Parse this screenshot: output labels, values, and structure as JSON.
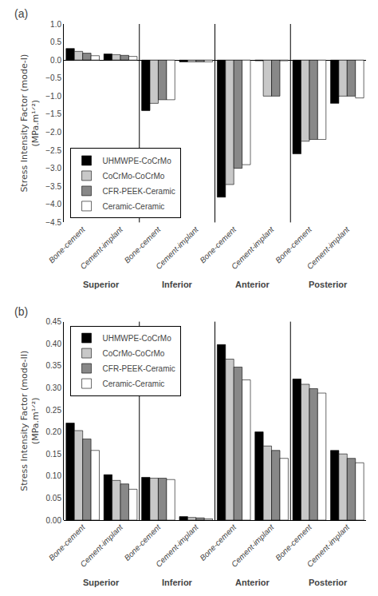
{
  "chart_data": [
    {
      "type": "bar",
      "title": "(a)",
      "y_label": "Stress Intensity Factor (mode-I)\n(MPa.m¹ᐟ²)",
      "groups": [
        "Superior",
        "Inferior",
        "Anterior",
        "Posterior"
      ],
      "categories": [
        "Bone-cement",
        "Cement-implant",
        "Bone-cement",
        "Cement-implant",
        "Bone-cement",
        "Cement-implant",
        "Bone-cement",
        "Cement-implant"
      ],
      "series": [
        {
          "name": "UHMWPE-CoCrMo",
          "color": "#000000",
          "values": [
            0.32,
            0.17,
            -1.4,
            -0.05,
            -3.8,
            -0.02,
            -2.6,
            -1.2
          ]
        },
        {
          "name": "CoCrMo-CoCrMo",
          "color": "#c8c8c8",
          "values": [
            0.24,
            0.15,
            -1.2,
            -0.05,
            -3.45,
            -1.0,
            -2.25,
            -1.0
          ]
        },
        {
          "name": "CFR-PEEK-Ceramic",
          "color": "#888888",
          "values": [
            0.19,
            0.13,
            -1.1,
            -0.05,
            -3.0,
            -1.0,
            -2.2,
            -1.0
          ]
        },
        {
          "name": "Ceramic-Ceramic",
          "color": "#ffffff",
          "values": [
            0.12,
            0.1,
            -1.1,
            -0.05,
            -2.9,
            -0.02,
            -2.2,
            -1.05
          ]
        }
      ],
      "ylim": [
        -4.5,
        1.0
      ],
      "yticks": [
        {
          "value": 1.0,
          "label": "1.0"
        },
        {
          "value": 0.5,
          "label": "0.5"
        },
        {
          "value": 0.0,
          "label": "0.0"
        },
        {
          "value": -0.5,
          "label": "−0.5"
        },
        {
          "value": -1.0,
          "label": "−1.0"
        },
        {
          "value": -1.5,
          "label": "−1.5"
        },
        {
          "value": -2.0,
          "label": "−2.0"
        },
        {
          "value": -2.5,
          "label": "−2.5"
        },
        {
          "value": -3.0,
          "label": "−3.0"
        },
        {
          "value": -3.5,
          "label": "−3.5"
        },
        {
          "value": -4.0,
          "label": "−4.0"
        },
        {
          "value": -4.5,
          "label": "−4.5"
        }
      ],
      "grid": false,
      "legend": "lower left"
    },
    {
      "type": "bar",
      "title": "(b)",
      "y_label": "Stress Intensity Factor (mode-II)\n(MPa.m¹ᐟ²)",
      "groups": [
        "Superior",
        "Inferior",
        "Anterior",
        "Posterior"
      ],
      "categories": [
        "Bone-cement",
        "Cement-implant",
        "Bone-cement",
        "Cement-implant",
        "Bone-cement",
        "Cement-implant",
        "Bone-cement",
        "Cement-implant"
      ],
      "series": [
        {
          "name": "UHMWPE-CoCrMo",
          "color": "#000000",
          "values": [
            0.22,
            0.103,
            0.097,
            0.008,
            0.398,
            0.2,
            0.32,
            0.158
          ]
        },
        {
          "name": "CoCrMo-CoCrMo",
          "color": "#c8c8c8",
          "values": [
            0.203,
            0.09,
            0.095,
            0.006,
            0.365,
            0.168,
            0.308,
            0.15
          ]
        },
        {
          "name": "CFR-PEEK-Ceramic",
          "color": "#888888",
          "values": [
            0.184,
            0.082,
            0.095,
            0.005,
            0.347,
            0.158,
            0.298,
            0.14
          ]
        },
        {
          "name": "Ceramic-Ceramic",
          "color": "#ffffff",
          "values": [
            0.158,
            0.07,
            0.092,
            0.003,
            0.318,
            0.14,
            0.288,
            0.13
          ]
        }
      ],
      "ylim": [
        0.0,
        0.45
      ],
      "yticks": [
        {
          "value": 0.0,
          "label": "0.00"
        },
        {
          "value": 0.05,
          "label": "0.05"
        },
        {
          "value": 0.1,
          "label": "0.10"
        },
        {
          "value": 0.15,
          "label": "0.15"
        },
        {
          "value": 0.2,
          "label": "0.20"
        },
        {
          "value": 0.25,
          "label": "0.25"
        },
        {
          "value": 0.3,
          "label": "0.30"
        },
        {
          "value": 0.35,
          "label": "0.35"
        },
        {
          "value": 0.4,
          "label": "0.40"
        },
        {
          "value": 0.45,
          "label": "0.45"
        }
      ],
      "grid": false,
      "legend": "upper left"
    }
  ]
}
